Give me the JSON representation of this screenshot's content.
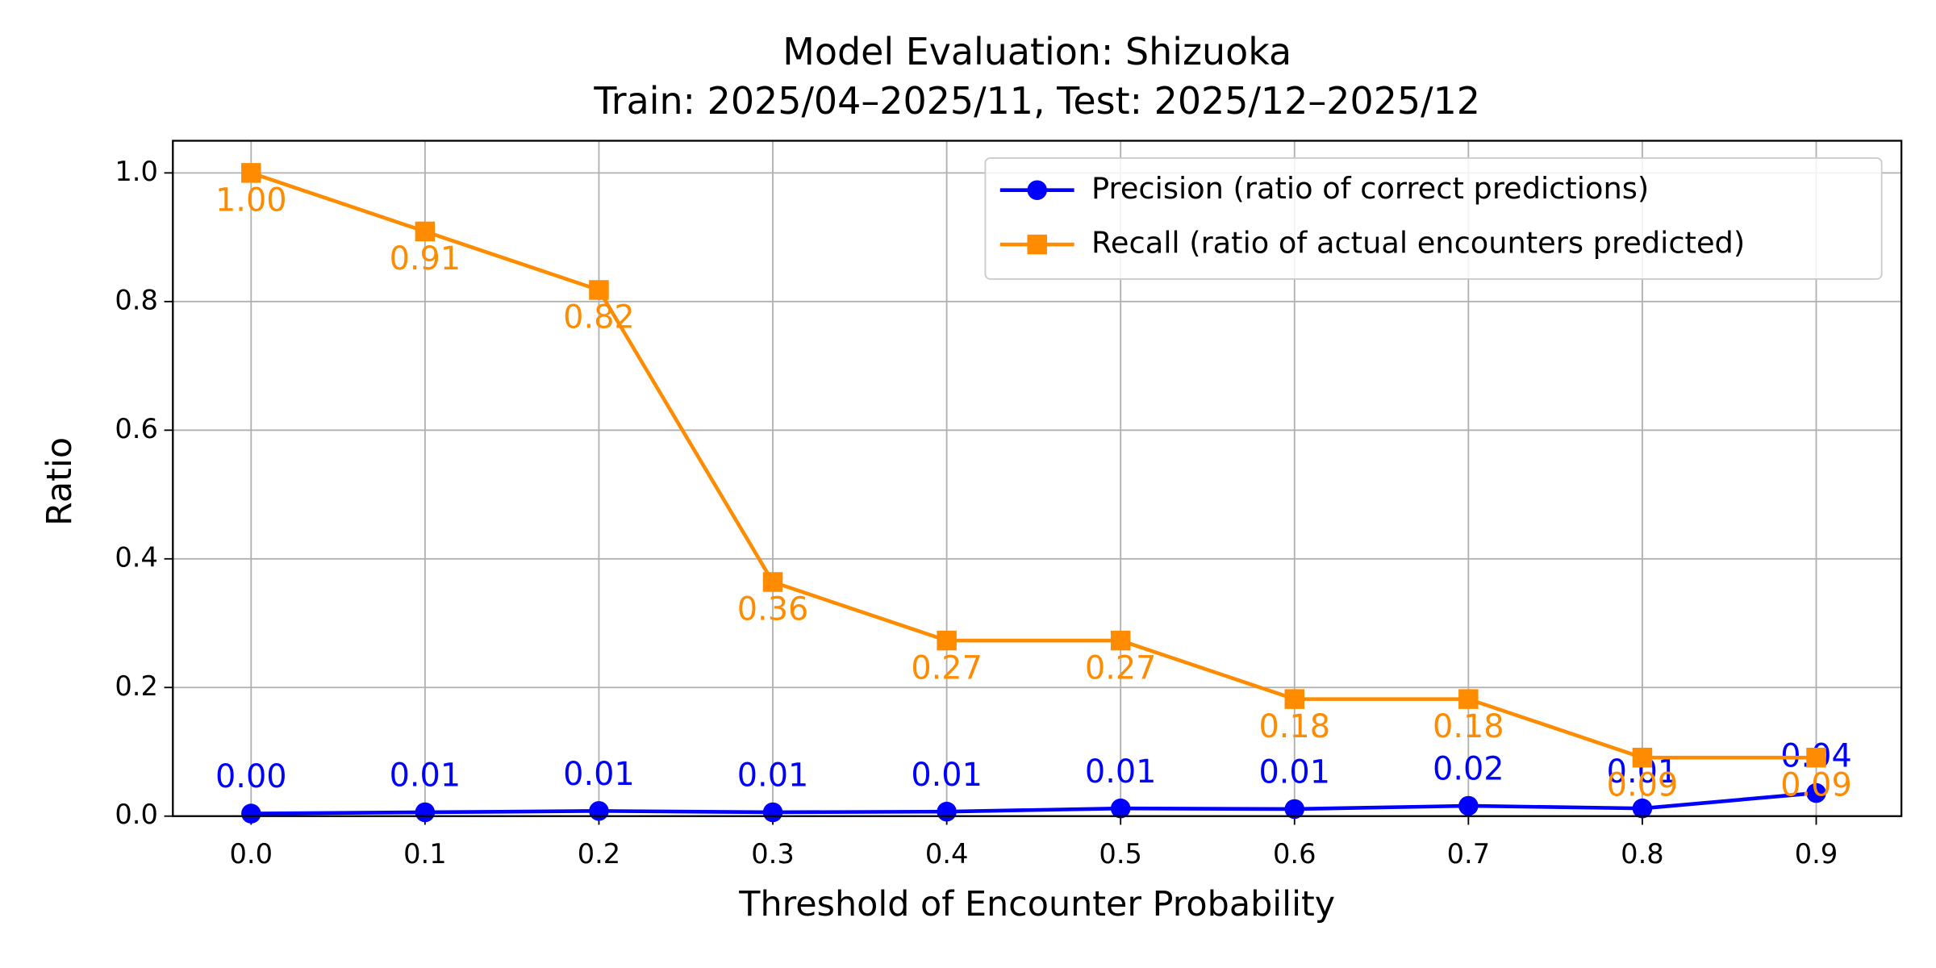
{
  "chart_data": {
    "type": "line",
    "title": "Model Evaluation: Shizuoka",
    "subtitle": "Train: 2025/04–2025/11, Test: 2025/12–2025/12",
    "x_label": "Threshold of Encounter Probability",
    "y_label": "Ratio",
    "x": [
      0,
      0.1,
      0.2,
      0.3,
      0.4,
      0.5,
      0.6,
      0.7,
      0.8,
      0.9
    ],
    "series": [
      {
        "name": "Precision (ratio of correct predictions)",
        "color": "#0000ff",
        "marker": "circle",
        "label_position": "above",
        "values": [
          0.004,
          0.006,
          0.008,
          0.006,
          0.007,
          0.012,
          0.011,
          0.016,
          0.012,
          0.036
        ],
        "value_labels": [
          "0.00",
          "0.01",
          "0.01",
          "0.01",
          "0.01",
          "0.01",
          "0.01",
          "0.02",
          "0.01",
          "0.04"
        ]
      },
      {
        "name": "Recall (ratio of actual encounters predicted)",
        "color": "#ff8c00",
        "marker": "square",
        "label_position": "below",
        "values": [
          1.0,
          0.909,
          0.818,
          0.364,
          0.273,
          0.273,
          0.182,
          0.182,
          0.091,
          0.091
        ],
        "value_labels": [
          "1.00",
          "0.91",
          "0.82",
          "0.36",
          "0.27",
          "0.27",
          "0.18",
          "0.18",
          "0.09",
          "0.09"
        ]
      }
    ],
    "xlim": [
      -0.045,
      0.949
    ],
    "ylim": [
      0,
      1.05
    ],
    "xticks": [
      {
        "value": 0,
        "label": "0.0"
      },
      {
        "value": 0.1,
        "label": "0.1"
      },
      {
        "value": 0.2,
        "label": "0.2"
      },
      {
        "value": 0.3,
        "label": "0.3"
      },
      {
        "value": 0.4,
        "label": "0.4"
      },
      {
        "value": 0.5,
        "label": "0.5"
      },
      {
        "value": 0.6,
        "label": "0.6"
      },
      {
        "value": 0.7,
        "label": "0.7"
      },
      {
        "value": 0.8,
        "label": "0.8"
      },
      {
        "value": 0.9,
        "label": "0.9"
      }
    ],
    "yticks": [
      {
        "value": 0,
        "label": "0.0"
      },
      {
        "value": 0.2,
        "label": "0.2"
      },
      {
        "value": 0.4,
        "label": "0.4"
      },
      {
        "value": 0.6,
        "label": "0.6"
      },
      {
        "value": 0.8,
        "label": "0.8"
      },
      {
        "value": 1,
        "label": "1.0"
      }
    ],
    "grid": true,
    "legend": "upper right"
  }
}
